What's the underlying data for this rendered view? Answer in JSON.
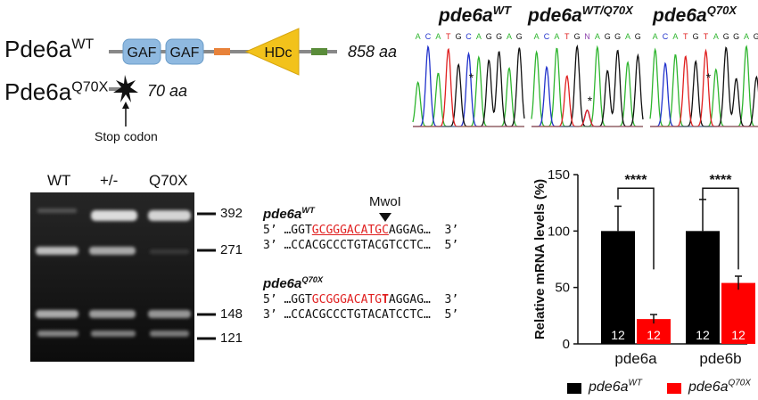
{
  "domain_panel": {
    "wt_label": {
      "base": "Pde6a",
      "sup": "WT"
    },
    "mut_label": {
      "base": "Pde6a",
      "sup": "Q70X"
    },
    "wt_length": "858 aa",
    "mut_length": "70 aa",
    "domains": [
      "GAF",
      "GAF",
      "HDc"
    ],
    "stop_label": "Stop codon",
    "colors": {
      "gaf": "#8fb9e0",
      "hdc": "#f2c21b",
      "orange_box": "#e8823a",
      "green_box": "#5a8c3a",
      "backbone": "#888888"
    }
  },
  "chromatograms": {
    "panels": [
      {
        "title_base": "pde6a",
        "title_sup": "WT",
        "seq": [
          "A",
          "C",
          "A",
          "T",
          "G",
          "C",
          "A",
          "G",
          "G",
          "A",
          "G"
        ],
        "star_index": 5
      },
      {
        "title_base": "pde6a",
        "title_sup": "WT/Q70X",
        "seq": [
          "A",
          "C",
          "A",
          "T",
          "G",
          "N",
          "A",
          "G",
          "G",
          "A",
          "G"
        ],
        "star_index": 5
      },
      {
        "title_base": "pde6a",
        "title_sup": "Q70X",
        "seq": [
          "A",
          "C",
          "A",
          "T",
          "G",
          "T",
          "A",
          "G",
          "G",
          "A",
          "G"
        ],
        "star_index": 5
      }
    ],
    "base_colors": {
      "A": "#2fb52f",
      "C": "#2233cc",
      "G": "#111111",
      "T": "#e02020",
      "N": "#8e44ad"
    }
  },
  "gel": {
    "lane_labels": [
      "WT",
      "+/-",
      "Q70X"
    ],
    "size_markers": [
      "392",
      "271",
      "148",
      "121"
    ]
  },
  "sequences": {
    "enzyme": "MwoI",
    "wt": {
      "title_base": "pde6a",
      "title_sup": "WT",
      "top_prefix": "5’ …GGT",
      "top_site": "GCGGGACATGC",
      "top_suffix": "AGGAG…  3’",
      "bottom": "3’ …CCACGCCCTGTACGTCCTC…  5’"
    },
    "mut": {
      "title_base": "pde6a",
      "title_sup": "Q70X",
      "top_prefix": "5’ …GGT",
      "top_site": "GCGGGACATG",
      "top_mut": "T",
      "top_suffix": "AGGAG…  3’",
      "bottom": "3’ …CCACGCCCTGTACATCCTC…  5’"
    }
  },
  "chart_data": {
    "type": "bar",
    "categories": [
      "pde6a",
      "pde6b"
    ],
    "series": [
      {
        "name": "pde6a^WT",
        "values": [
          100,
          100
        ],
        "errors": [
          22,
          28
        ],
        "n": [
          "12",
          "12"
        ],
        "color": "#000000"
      },
      {
        "name": "pde6a^Q70X",
        "values": [
          22,
          54
        ],
        "errors": [
          4,
          6
        ],
        "n": [
          "12",
          "12"
        ],
        "color": "#ff0000"
      }
    ],
    "ylabel": "Relative mRNA levels (%)",
    "ylim": [
      0,
      150
    ],
    "yticks": [
      "0",
      "50",
      "100",
      "150"
    ],
    "significance": [
      "****",
      "****"
    ],
    "legend": [
      {
        "base": "pde6a",
        "sup": "WT",
        "color": "#000000"
      },
      {
        "base": "pde6a",
        "sup": "Q70X",
        "color": "#ff0000"
      }
    ],
    "legend_position": "bottom"
  }
}
